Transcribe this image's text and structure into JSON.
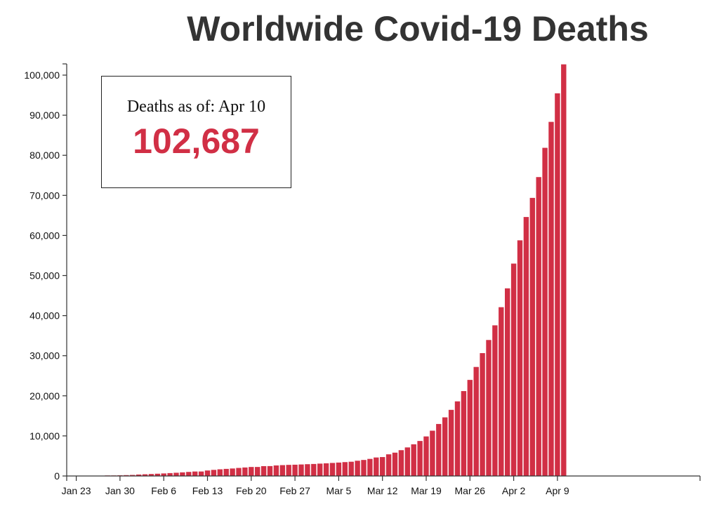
{
  "colors": {
    "bar": "#d12f45",
    "axis": "#333333",
    "title": "#333333"
  },
  "info_box": {
    "label": "Deaths as of:",
    "date": "Apr 10",
    "value": "102,687"
  },
  "chart_data": {
    "type": "bar",
    "title": "Worldwide Covid-19 Deaths",
    "xlabel": "",
    "ylabel": "",
    "ylim": [
      0,
      103000
    ],
    "grid": false,
    "x_ticks": [
      "Jan 23",
      "Jan 30",
      "Feb 6",
      "Feb 13",
      "Feb 20",
      "Feb 27",
      "Mar 5",
      "Mar 12",
      "Mar 19",
      "Mar 26",
      "Apr 2",
      "Apr 9"
    ],
    "y_ticks": [
      "0",
      "10,000",
      "20,000",
      "30,000",
      "40,000",
      "50,000",
      "60,000",
      "70,000",
      "80,000",
      "90,000",
      "100,000"
    ],
    "y_tick_values": [
      0,
      10000,
      20000,
      30000,
      40000,
      50000,
      60000,
      70000,
      80000,
      90000,
      100000
    ],
    "categories": [
      "Jan 22",
      "Jan 23",
      "Jan 24",
      "Jan 25",
      "Jan 26",
      "Jan 27",
      "Jan 28",
      "Jan 29",
      "Jan 30",
      "Jan 31",
      "Feb 1",
      "Feb 2",
      "Feb 3",
      "Feb 4",
      "Feb 5",
      "Feb 6",
      "Feb 7",
      "Feb 8",
      "Feb 9",
      "Feb 10",
      "Feb 11",
      "Feb 12",
      "Feb 13",
      "Feb 14",
      "Feb 15",
      "Feb 16",
      "Feb 17",
      "Feb 18",
      "Feb 19",
      "Feb 20",
      "Feb 21",
      "Feb 22",
      "Feb 23",
      "Feb 24",
      "Feb 25",
      "Feb 26",
      "Feb 27",
      "Feb 28",
      "Feb 29",
      "Mar 1",
      "Mar 2",
      "Mar 3",
      "Mar 4",
      "Mar 5",
      "Mar 6",
      "Mar 7",
      "Mar 8",
      "Mar 9",
      "Mar 10",
      "Mar 11",
      "Mar 12",
      "Mar 13",
      "Mar 14",
      "Mar 15",
      "Mar 16",
      "Mar 17",
      "Mar 18",
      "Mar 19",
      "Mar 20",
      "Mar 21",
      "Mar 22",
      "Mar 23",
      "Mar 24",
      "Mar 25",
      "Mar 26",
      "Mar 27",
      "Mar 28",
      "Mar 29",
      "Mar 30",
      "Mar 31",
      "Apr 1",
      "Apr 2",
      "Apr 3",
      "Apr 4",
      "Apr 5",
      "Apr 6",
      "Apr 7",
      "Apr 8",
      "Apr 9",
      "Apr 10"
    ],
    "values": [
      17,
      18,
      26,
      42,
      56,
      82,
      131,
      133,
      171,
      213,
      259,
      362,
      426,
      492,
      564,
      634,
      719,
      806,
      906,
      1013,
      1113,
      1118,
      1371,
      1523,
      1666,
      1770,
      1868,
      2007,
      2122,
      2247,
      2251,
      2458,
      2469,
      2629,
      2708,
      2770,
      2814,
      2872,
      2941,
      2996,
      3085,
      3160,
      3254,
      3348,
      3460,
      3558,
      3803,
      3996,
      4262,
      4615,
      4720,
      5404,
      5819,
      6440,
      7126,
      7905,
      8733,
      9867,
      11299,
      12973,
      14623,
      16497,
      18615,
      21181,
      23970,
      27198,
      30652,
      33925,
      37582,
      42107,
      46809,
      52983,
      58787,
      64606,
      69374,
      74565,
      81865,
      88338,
      95455,
      102687
    ]
  }
}
